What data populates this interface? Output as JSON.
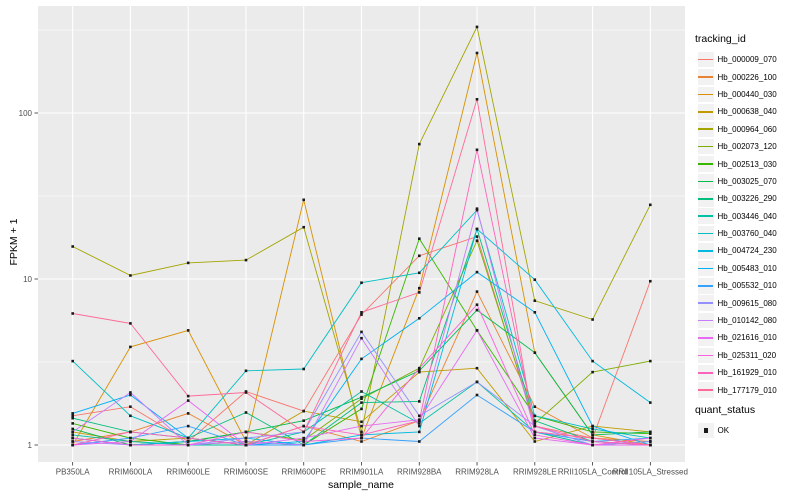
{
  "chart_data": {
    "type": "line",
    "title": "",
    "xlabel": "sample_name",
    "ylabel": "FPKM + 1",
    "y_scale": "log10",
    "y_ticks": [
      1,
      10,
      100
    ],
    "y_minor_ticks": [
      3.162,
      31.62,
      316.2
    ],
    "grid": "on",
    "legend_position": "right",
    "panel_bg": "#EBEBEB",
    "grid_color": "#FFFFFF",
    "point_color": "#1A1A1A",
    "tick_text_color": "#4D4D4D",
    "legend_title": "tracking_id",
    "quant_status_title": "quant_status",
    "quant_status_items": [
      {
        "label": "OK"
      }
    ],
    "categories": [
      "PB350LA",
      "RRIM600LA",
      "RRIM600LE",
      "RRIM600SE",
      "RRIM600PE",
      "RRIM901LA",
      "RRIM928BA",
      "RRIM928LA",
      "RRIM928LE",
      "RRII105LA_Control",
      "RRII105LA_Stressed"
    ],
    "series": [
      {
        "name": "Hb_000009_070",
        "color": "#F8766D",
        "values": [
          1.5,
          1.7,
          1.05,
          2.1,
          1.6,
          6.1,
          13.8,
          18,
          1.3,
          1.1,
          9.7
        ]
      },
      {
        "name": "Hb_000226_100",
        "color": "#EA8331",
        "values": [
          1.05,
          1.2,
          1.55,
          1.0,
          1.3,
          1.05,
          1.4,
          8.4,
          1.7,
          1.1,
          1.05
        ]
      },
      {
        "name": "Hb_000440_030",
        "color": "#D89000",
        "values": [
          1.0,
          3.9,
          4.9,
          1.05,
          30,
          1.1,
          8.8,
          230,
          3.6,
          1.15,
          1.0
        ]
      },
      {
        "name": "Hb_000638_040",
        "color": "#C09B00",
        "values": [
          1.2,
          1.05,
          1.1,
          1.0,
          1.6,
          1.38,
          2.75,
          2.9,
          1.05,
          1.3,
          1.2
        ]
      },
      {
        "name": "Hb_000964_060",
        "color": "#A3A500",
        "values": [
          15.7,
          10.5,
          12.5,
          13,
          20.5,
          1.2,
          65,
          330,
          7.4,
          5.7,
          28
        ]
      },
      {
        "name": "Hb_002073_120",
        "color": "#7CAE00",
        "values": [
          1.1,
          1.0,
          1.05,
          1.2,
          1.07,
          1.9,
          2.9,
          17,
          1.35,
          2.75,
          3.2
        ]
      },
      {
        "name": "Hb_002513_030",
        "color": "#39B600",
        "values": [
          1.35,
          1.1,
          1.0,
          1.05,
          1.0,
          1.65,
          17.5,
          4.9,
          1.5,
          1.2,
          1.17
        ]
      },
      {
        "name": "Hb_003025_070",
        "color": "#00BB4E",
        "values": [
          1.25,
          1.0,
          1.05,
          1.2,
          1.4,
          1.94,
          2.8,
          6.5,
          3.6,
          1.15,
          1.2
        ]
      },
      {
        "name": "Hb_003226_290",
        "color": "#00BF7D",
        "values": [
          1.45,
          1.2,
          1.1,
          1.57,
          1.0,
          1.8,
          1.83,
          20,
          1.4,
          1.05,
          1.0
        ]
      },
      {
        "name": "Hb_003446_040",
        "color": "#00C1A3",
        "values": [
          1.15,
          1.05,
          1.0,
          1.0,
          1.2,
          2.1,
          1.35,
          2.4,
          1.2,
          1.0,
          1.05
        ]
      },
      {
        "name": "Hb_003760_040",
        "color": "#00BFC4",
        "values": [
          3.2,
          1.5,
          1.1,
          2.8,
          2.87,
          9.5,
          10.9,
          26,
          1.5,
          1.25,
          1.1
        ]
      },
      {
        "name": "Hb_004724_230",
        "color": "#00BAE0",
        "values": [
          1.1,
          1.0,
          1.05,
          1.1,
          1.0,
          1.15,
          1.2,
          20,
          9.9,
          3.2,
          1.8
        ]
      },
      {
        "name": "Hb_005483_010",
        "color": "#00B0F6",
        "values": [
          1.55,
          2.0,
          1.1,
          1.0,
          1.05,
          3.3,
          5.8,
          11,
          6.3,
          1.3,
          1.0
        ]
      },
      {
        "name": "Hb_005532_010",
        "color": "#35A2FF",
        "values": [
          1.0,
          1.1,
          1.3,
          1.0,
          1.0,
          1.1,
          1.05,
          2.0,
          1.2,
          1.05,
          1.1
        ]
      },
      {
        "name": "Hb_009615_080",
        "color": "#9590FF",
        "values": [
          1.05,
          1.0,
          1.0,
          1.1,
          1.2,
          4.8,
          1.5,
          2.4,
          1.3,
          1.0,
          1.05
        ]
      },
      {
        "name": "Hb_010142_080",
        "color": "#C77CFF",
        "values": [
          1.2,
          2.07,
          1.0,
          1.05,
          1.0,
          4.4,
          1.3,
          26.5,
          1.2,
          1.1,
          1.0
        ]
      },
      {
        "name": "Hb_021616_010",
        "color": "#E76BF3",
        "values": [
          1.0,
          1.05,
          1.85,
          1.0,
          1.1,
          1.3,
          1.42,
          4.9,
          1.1,
          1.0,
          1.0
        ]
      },
      {
        "name": "Hb_025311_020",
        "color": "#FA62DB",
        "values": [
          1.1,
          1.0,
          1.0,
          1.2,
          1.05,
          1.1,
          2.9,
          7.0,
          1.15,
          1.0,
          1.1
        ]
      },
      {
        "name": "Hb_161929_010",
        "color": "#FF62BC",
        "values": [
          1.0,
          1.2,
          1.1,
          1.0,
          1.3,
          1.15,
          1.4,
          60,
          1.3,
          1.05,
          1.0
        ]
      },
      {
        "name": "Hb_177179_010",
        "color": "#FF6A98",
        "values": [
          6.2,
          5.4,
          1.97,
          2.07,
          1.2,
          6.3,
          8.3,
          121,
          1.2,
          1.1,
          1.0
        ]
      }
    ]
  }
}
